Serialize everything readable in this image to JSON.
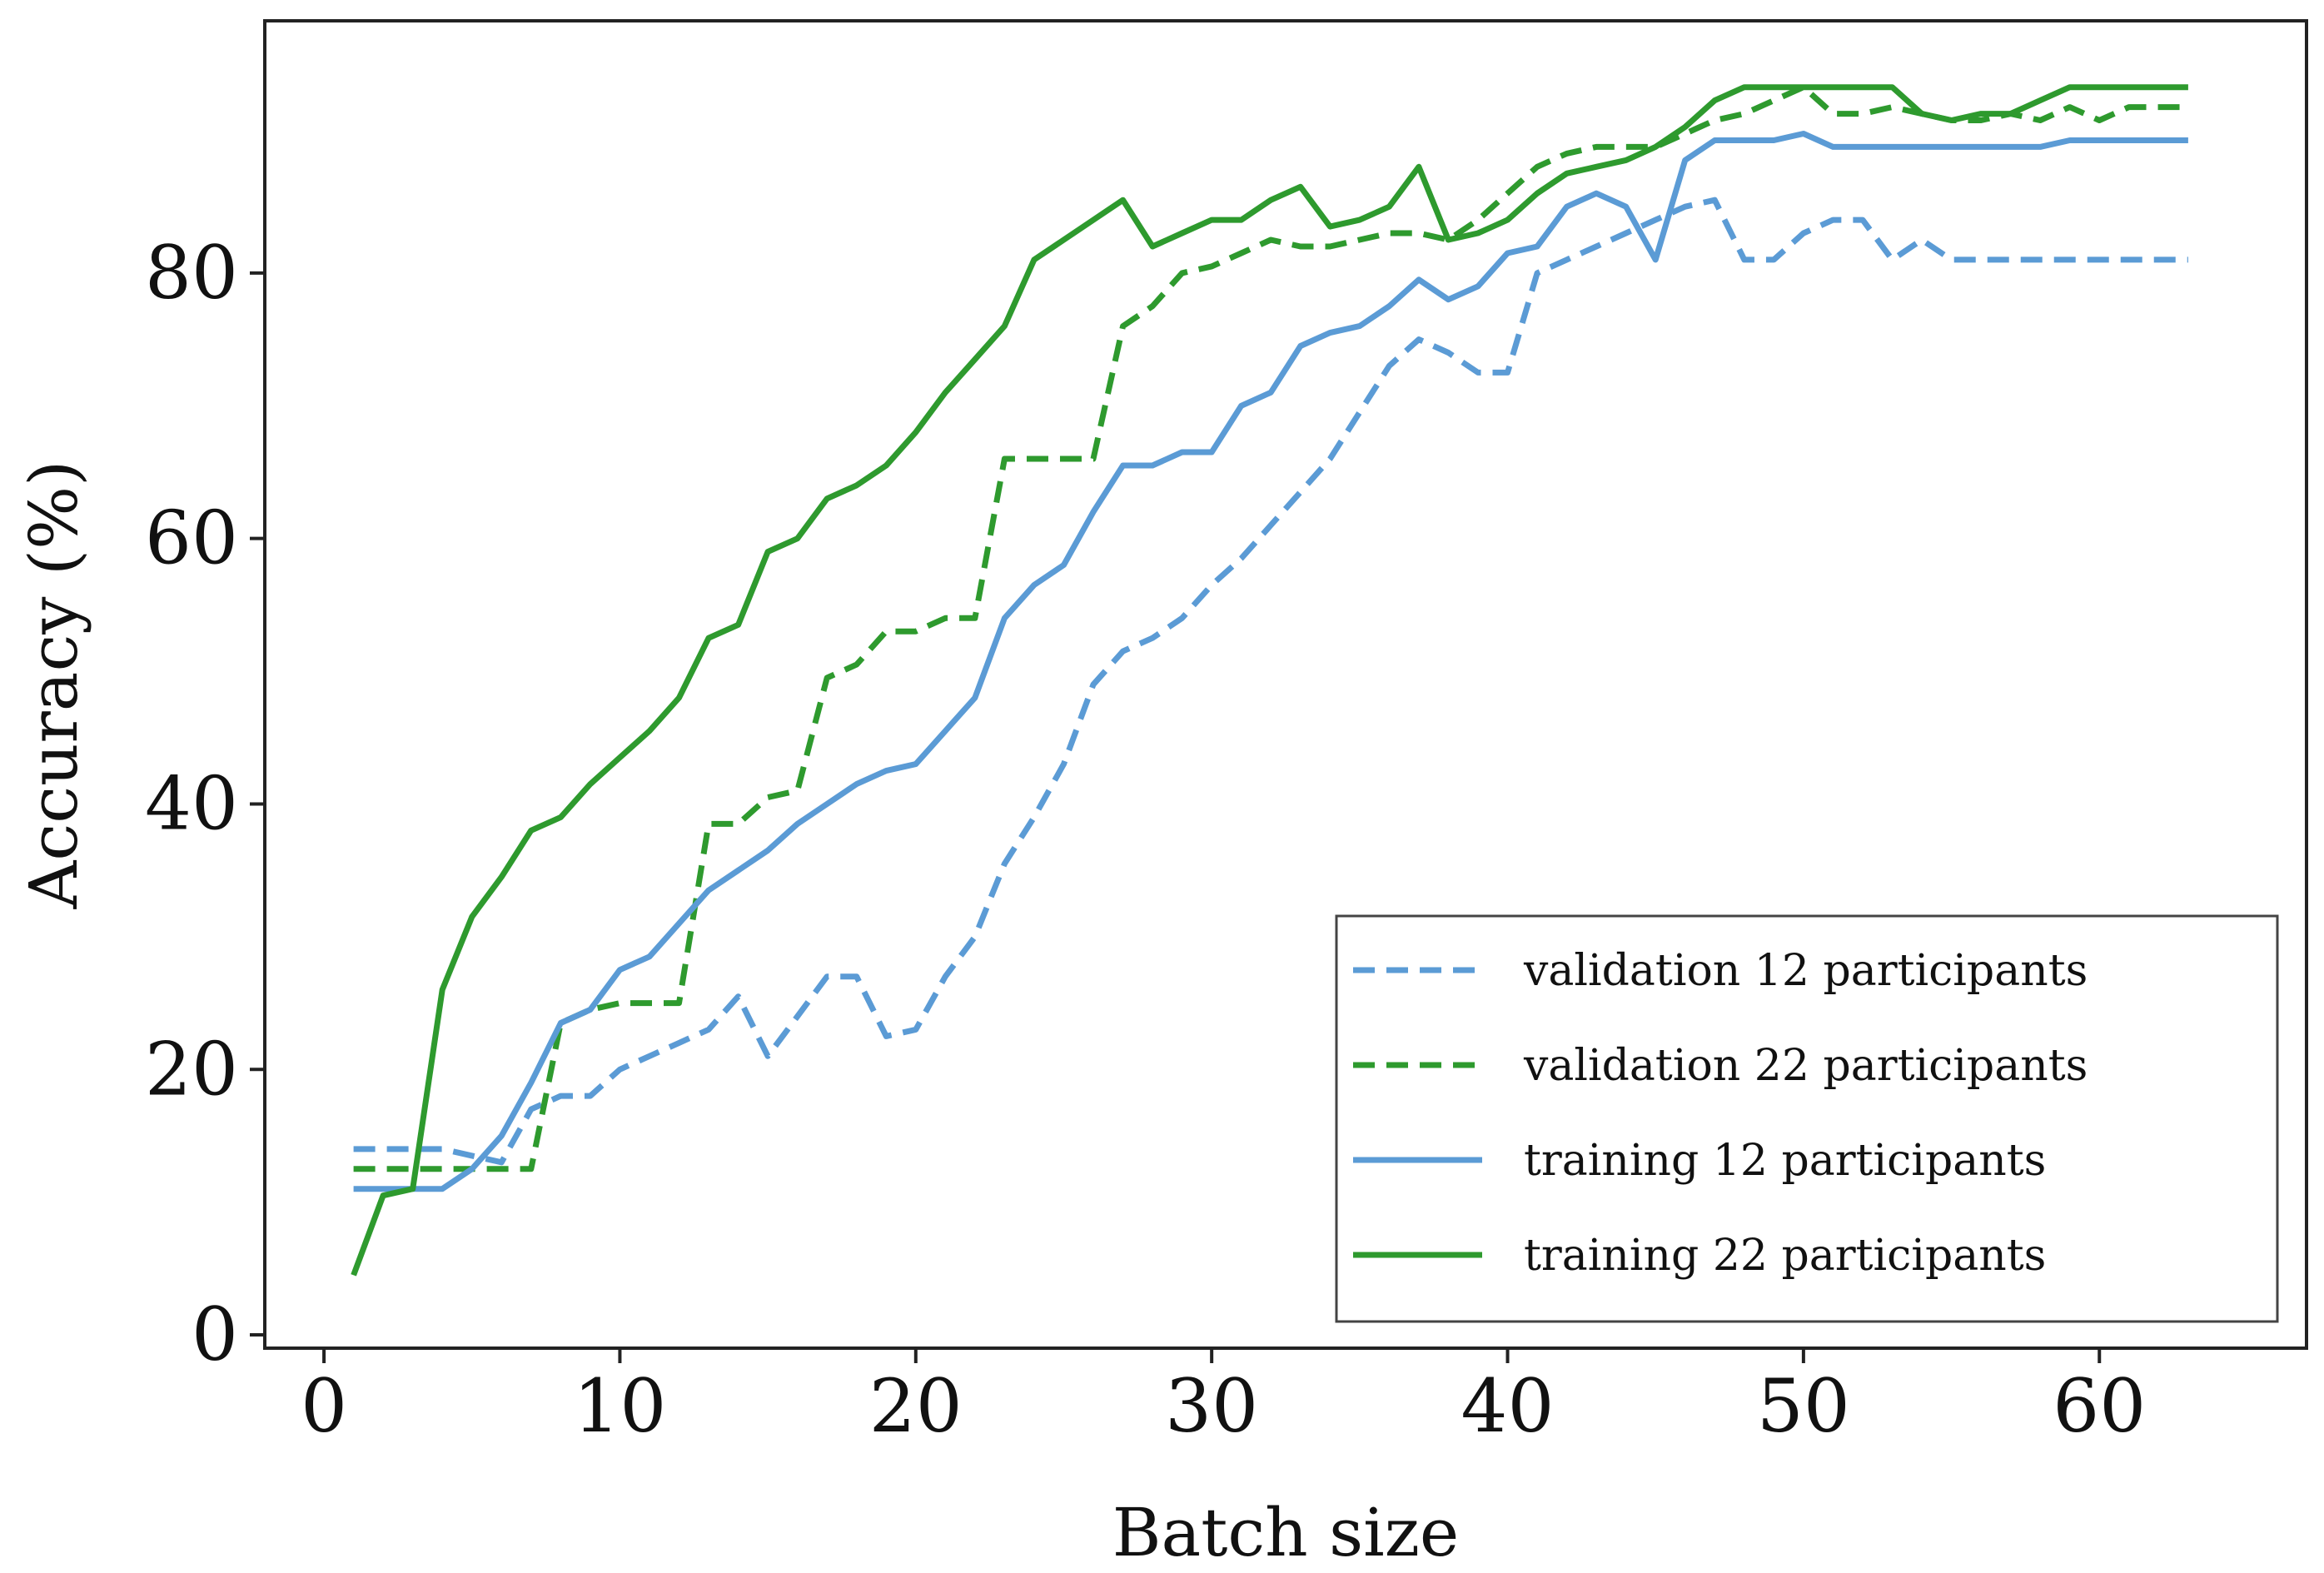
{
  "chart_data": {
    "type": "line",
    "title": "",
    "xlabel": "Batch size",
    "ylabel": "Accuracy (%)",
    "xlim": [
      -2,
      67
    ],
    "ylim": [
      -1,
      99
    ],
    "xticks": [
      0,
      10,
      20,
      30,
      40,
      50,
      60
    ],
    "yticks": [
      0,
      20,
      40,
      60,
      80
    ],
    "grid": false,
    "legend_position": "lower-right",
    "x": [
      1,
      2,
      3,
      4,
      5,
      6,
      7,
      8,
      9,
      10,
      11,
      12,
      13,
      14,
      15,
      16,
      17,
      18,
      19,
      20,
      21,
      22,
      23,
      24,
      25,
      26,
      27,
      28,
      29,
      30,
      31,
      32,
      33,
      34,
      35,
      36,
      37,
      38,
      39,
      40,
      41,
      42,
      43,
      44,
      45,
      46,
      47,
      48,
      49,
      50,
      51,
      52,
      53,
      54,
      55,
      56,
      57,
      58,
      59,
      60,
      61,
      62,
      63
    ],
    "series": [
      {
        "name": "validation 12 participants",
        "color": "#5b9bd5",
        "dash": "dashed",
        "values": [
          14,
          14,
          14,
          14,
          13.5,
          13,
          17,
          18,
          18,
          20,
          21,
          22,
          23,
          25.5,
          21,
          24,
          27,
          27,
          22.5,
          23,
          27,
          30,
          35.5,
          39,
          43,
          49,
          51.5,
          52.5,
          54,
          56.5,
          58.5,
          61,
          63.5,
          66,
          69.5,
          73,
          75,
          74,
          72.5,
          72.5,
          80,
          81,
          82,
          83,
          84,
          85,
          85.5,
          81,
          81,
          83,
          84,
          84,
          81,
          82.5,
          81,
          81,
          81,
          81,
          81,
          81,
          81,
          81,
          81
        ]
      },
      {
        "name": "validation 22 participants",
        "color": "#2e9a2e",
        "dash": "dashed",
        "values": [
          12.5,
          12.5,
          12.5,
          12.5,
          12.5,
          12.5,
          12.5,
          23.5,
          24.5,
          25,
          25,
          25,
          38.5,
          38.5,
          40.5,
          41,
          49.5,
          50.5,
          53,
          53,
          54,
          54,
          66,
          66,
          66,
          66,
          76,
          77.5,
          80,
          80.5,
          81.5,
          82.5,
          82,
          82,
          82.5,
          83,
          83,
          82.5,
          84,
          86,
          88,
          89,
          89.5,
          89.5,
          89.5,
          90.5,
          91.5,
          92,
          93,
          94,
          92,
          92,
          92.5,
          92,
          91.5,
          91.5,
          92,
          91.5,
          92.5,
          91.5,
          92.5,
          92.5,
          92.5
        ]
      },
      {
        "name": "training 12 participants",
        "color": "#5b9bd5",
        "dash": "solid",
        "values": [
          11,
          11,
          11,
          11,
          12.5,
          15,
          19,
          23.5,
          24.5,
          27.5,
          28.5,
          31,
          33.5,
          35,
          36.5,
          38.5,
          40,
          41.5,
          42.5,
          43,
          45.5,
          48,
          54,
          56.5,
          58,
          62,
          65.5,
          65.5,
          66.5,
          66.5,
          70,
          71,
          74.5,
          75.5,
          76,
          77.5,
          79.5,
          78,
          79,
          81.5,
          82,
          85,
          86,
          85,
          81,
          88.5,
          90,
          90,
          90,
          90.5,
          89.5,
          89.5,
          89.5,
          89.5,
          89.5,
          89.5,
          89.5,
          89.5,
          90,
          90,
          90,
          90,
          90
        ]
      },
      {
        "name": "training 22 participants",
        "color": "#2e9a2e",
        "dash": "solid",
        "values": [
          4.5,
          10.5,
          11,
          26,
          31.5,
          34.5,
          38,
          39,
          41.5,
          43.5,
          45.5,
          48,
          52.5,
          53.5,
          59,
          60,
          63,
          64,
          65.5,
          68,
          71,
          73.5,
          76,
          81,
          82.5,
          84,
          85.5,
          82,
          83,
          84,
          84,
          85.5,
          86.5,
          83.5,
          84,
          85,
          88,
          82.5,
          83,
          84,
          86,
          87.5,
          88,
          88.5,
          89.5,
          91,
          93,
          94,
          94,
          94,
          94,
          94,
          94,
          92,
          91.5,
          92,
          92,
          93,
          94,
          94,
          94,
          94,
          94
        ]
      }
    ]
  }
}
